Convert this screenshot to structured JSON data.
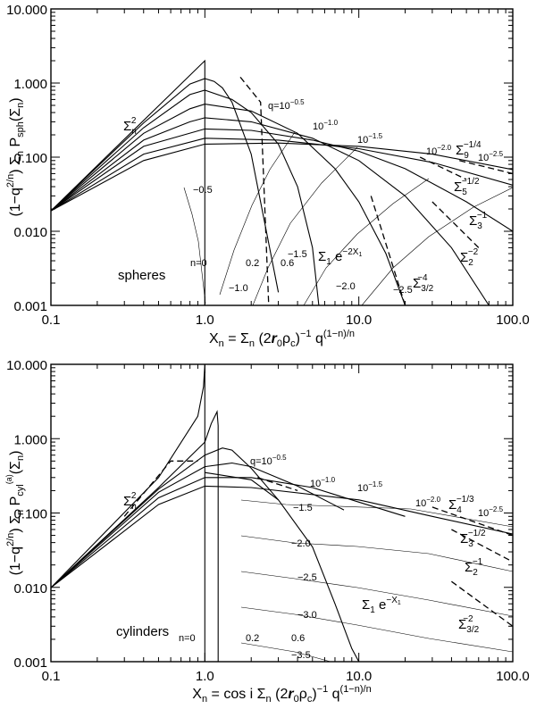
{
  "chart_data": [
    {
      "type": "line",
      "title": "",
      "xscale": "log",
      "yscale": "log",
      "xlim": [
        0.1,
        100.0
      ],
      "ylim": [
        0.001,
        10.0
      ],
      "x_ticks": [
        "0.1",
        "1.0",
        "10.0",
        "100.0"
      ],
      "y_ticks": [
        "0.001",
        "0.010",
        "0.100",
        "1.000",
        "10.000"
      ],
      "xlabel": "X_n = Σ_n (2r0ρc)^-1 q^((1-n)/n)",
      "ylabel": "(1-q^(2/n)) Σ_n P_sph(Σ_n)",
      "xlabel_parts": {
        "a": "X",
        "a_sub": "n",
        "b": " = Σ",
        "b_sub": "n",
        "c": " (2",
        "r": "r",
        "r_sub": "0",
        "rho": "ρ",
        "rho_sub": "c",
        "d": ")",
        "d_sup": "−1",
        "e": " q",
        "e_sup": "(1−n)/n"
      },
      "ylabel_parts": {
        "a": "(1−q",
        "a_sup": "2/n",
        "b": ") Σ",
        "b_sub": "n",
        "c": " P",
        "c_sub": "sph",
        "d": "(Σ",
        "d_sub": "n",
        "e": ")"
      },
      "panel_label": "spheres",
      "series": [
        {
          "name": "n=0",
          "x": [
            0.1,
            1.0,
            1.0
          ],
          "y": [
            0.0189,
            2.0,
            0.001
          ]
        },
        {
          "name": "q=10^-0.5 (n=0.2)",
          "x": [
            0.1,
            0.4,
            0.8,
            1.0,
            1.15,
            1.3,
            1.5,
            2.0,
            3.0
          ],
          "y": [
            0.0189,
            0.29,
            0.97,
            1.15,
            1.05,
            0.86,
            0.55,
            0.11,
            0.0015
          ]
        },
        {
          "name": "q=10^-1.0",
          "x": [
            0.1,
            0.4,
            0.8,
            1.0,
            1.5,
            2.0,
            3.0,
            4.0,
            5.0,
            5.5
          ],
          "y": [
            0.0189,
            0.25,
            0.7,
            0.8,
            0.6,
            0.4,
            0.15,
            0.04,
            0.006,
            0.001
          ]
        },
        {
          "name": "q=10^-1.5",
          "x": [
            0.1,
            0.4,
            0.8,
            1.0,
            2.0,
            4.0,
            7.0,
            10.0,
            15.0,
            20.0
          ],
          "y": [
            0.0189,
            0.21,
            0.45,
            0.52,
            0.42,
            0.21,
            0.07,
            0.025,
            0.005,
            0.001
          ]
        },
        {
          "name": "q=10^-2.0",
          "x": [
            0.1,
            0.4,
            0.8,
            1.0,
            2.0,
            5.0,
            10.0,
            20.0,
            40.0,
            70.0
          ],
          "y": [
            0.0189,
            0.17,
            0.3,
            0.34,
            0.3,
            0.18,
            0.09,
            0.03,
            0.006,
            0.001
          ]
        },
        {
          "name": "q=10^-2.5",
          "x": [
            0.1,
            0.4,
            1.0,
            2.0,
            5.0,
            10.0,
            20.0,
            50.0,
            100.0
          ],
          "y": [
            0.0189,
            0.14,
            0.24,
            0.23,
            0.17,
            0.12,
            0.07,
            0.025,
            0.01
          ]
        },
        {
          "name": "Σ_5^(-1/2)",
          "x": [
            0.1,
            0.4,
            1.0,
            3.0,
            10.0,
            30.0,
            100.0
          ],
          "y": [
            0.0189,
            0.11,
            0.18,
            0.17,
            0.13,
            0.085,
            0.042
          ]
        },
        {
          "name": "Σ_9^(-1/4)",
          "x": [
            0.1,
            0.4,
            1.0,
            3.0,
            10.0,
            30.0,
            100.0
          ],
          "y": [
            0.0189,
            0.09,
            0.15,
            0.155,
            0.14,
            0.11,
            0.068
          ]
        }
      ],
      "annotations": [
        {
          "id": "sigma_n2",
          "text": "Σ",
          "sub": "n",
          "sup": "2"
        },
        {
          "id": "q05",
          "text": "q=10",
          "sup": "−0.5"
        },
        {
          "id": "q10",
          "text": "10",
          "sup": "−1.0"
        },
        {
          "id": "q15",
          "text": "10",
          "sup": "−1.5"
        },
        {
          "id": "q20",
          "text": "10",
          "sup": "−2.0"
        },
        {
          "id": "q25",
          "text": "10",
          "sup": "−2.5"
        },
        {
          "id": "s9",
          "text": "Σ",
          "sub": "9",
          "sup": "−1/4"
        },
        {
          "id": "s5",
          "text": "Σ",
          "sub": "5",
          "sup": "−1/2"
        },
        {
          "id": "s3",
          "text": "Σ",
          "sub": "3",
          "sup": "−1"
        },
        {
          "id": "s2",
          "text": "Σ",
          "sub": "2",
          "sup": "−2"
        },
        {
          "id": "s32",
          "text": "Σ",
          "sub": "3/2",
          "sup": "−4"
        },
        {
          "id": "exp",
          "text": "Σ",
          "sub": "1",
          "mid": " e",
          "sup": "−2X",
          "supsub": "1"
        },
        {
          "id": "n0",
          "text": "n=0"
        },
        {
          "id": "n02",
          "text": "0.2"
        },
        {
          "id": "n06",
          "text": "0.6"
        },
        {
          "id": "c05",
          "text": "−0.5"
        },
        {
          "id": "c10",
          "text": "−1.0"
        },
        {
          "id": "c15",
          "text": "−1.5"
        },
        {
          "id": "c20",
          "text": "−2.0"
        },
        {
          "id": "c25",
          "text": "−2.5"
        }
      ]
    },
    {
      "type": "line",
      "title": "",
      "xscale": "log",
      "yscale": "log",
      "xlim": [
        0.1,
        100.0
      ],
      "ylim": [
        0.001,
        10.0
      ],
      "x_ticks": [
        "0.1",
        "1.0",
        "10.0",
        "100.0"
      ],
      "y_ticks": [
        "0.001",
        "0.010",
        "0.100",
        "1.000",
        "10.000"
      ],
      "xlabel": "X_n = cos i Σ_n (2r0ρc)^-1 q^((1-n)/n)",
      "ylabel": "(1-q^(2/n)) Σ_n P_cyl^(a)(Σ_n)",
      "xlabel_parts": {
        "a": "X",
        "a_sub": "n",
        "b": " = cos i Σ",
        "b_sub": "n",
        "c": " (2",
        "r": "r",
        "r_sub": "0",
        "rho": "ρ",
        "rho_sub": "c",
        "d": ")",
        "d_sup": "−1",
        "e": " q",
        "e_sup": "(1−n)/n"
      },
      "ylabel_parts": {
        "a": "(1−q",
        "a_sup": "2/n",
        "b": ") Σ",
        "b_sub": "n",
        "c": " P",
        "c_sub": "cyl",
        "c_sup": "(a)",
        "d": "(Σ",
        "d_sub": "n",
        "e": ")"
      },
      "panel_label": "cylinders",
      "series": [
        {
          "name": "n=0",
          "x": [
            0.1,
            0.5,
            0.9,
            0.98,
            1.0,
            1.0
          ],
          "y": [
            0.0099,
            0.3,
            2.0,
            5.0,
            10.0,
            0.001
          ]
        },
        {
          "name": "q=10^-0.5 (n=0.2)",
          "x": [
            0.1,
            0.5,
            1.0,
            1.1,
            1.2,
            1.22,
            1.22
          ],
          "y": [
            0.0099,
            0.22,
            0.9,
            1.6,
            2.3,
            1.5,
            0.001
          ]
        },
        {
          "name": "q=10^-1.0",
          "x": [
            0.1,
            0.5,
            1.0,
            1.3,
            1.5,
            2.0,
            3.0
          ],
          "y": [
            0.0099,
            0.21,
            0.6,
            0.75,
            0.7,
            0.4,
            0.15
          ]
        },
        {
          "name": "q=10^-1.5",
          "x": [
            0.1,
            0.5,
            1.0,
            1.5,
            2.0,
            4.0,
            8.0
          ],
          "y": [
            0.0099,
            0.19,
            0.42,
            0.47,
            0.42,
            0.23,
            0.11
          ]
        },
        {
          "name": "q=10^-2.0",
          "x": [
            0.1,
            0.5,
            1.0,
            2.0,
            5.0,
            10.0,
            20.0
          ],
          "y": [
            0.0099,
            0.16,
            0.3,
            0.3,
            0.22,
            0.14,
            0.09
          ]
        },
        {
          "name": "q=10^-2.5",
          "x": [
            0.1,
            0.5,
            1.0,
            2.0,
            10.0,
            30.0,
            100.0
          ],
          "y": [
            0.0099,
            0.13,
            0.23,
            0.22,
            0.15,
            0.09,
            0.052
          ]
        },
        {
          "name": "Σ_1 e^(-X1)",
          "x": [
            1.0,
            2.0,
            3.0,
            5.0,
            7.0,
            9.0,
            10.0
          ],
          "y": [
            0.35,
            0.28,
            0.15,
            0.035,
            0.006,
            0.0015,
            0.001
          ]
        }
      ],
      "annotations": [
        {
          "id": "sigma_n2",
          "text": "Σ",
          "sub": "n",
          "sup": "2"
        },
        {
          "id": "q05",
          "text": "q=10",
          "sup": "−0.5"
        },
        {
          "id": "q10",
          "text": "10",
          "sup": "−1.0"
        },
        {
          "id": "q15",
          "text": "10",
          "sup": "−1.5"
        },
        {
          "id": "q20",
          "text": "10",
          "sup": "−2.0"
        },
        {
          "id": "q25",
          "text": "10",
          "sup": "−2.5"
        },
        {
          "id": "s4",
          "text": "Σ",
          "sub": "4",
          "sup": "−1/3"
        },
        {
          "id": "s3",
          "text": "Σ",
          "sub": "3",
          "sup": "−1/2"
        },
        {
          "id": "s2",
          "text": "Σ",
          "sub": "2",
          "sup": "−1"
        },
        {
          "id": "s32",
          "text": "Σ",
          "sub": "3/2",
          "sup": "−2"
        },
        {
          "id": "exp",
          "text": "Σ",
          "sub": "1",
          "mid": " e",
          "sup": "−X",
          "supsub": "1"
        },
        {
          "id": "n0",
          "text": "n=0"
        },
        {
          "id": "n02",
          "text": "0.2"
        },
        {
          "id": "n06",
          "text": "0.6"
        },
        {
          "id": "c15",
          "text": "−1.5"
        },
        {
          "id": "c20",
          "text": "−2.0"
        },
        {
          "id": "c25",
          "text": "−2.5"
        },
        {
          "id": "c30",
          "text": "−3.0"
        },
        {
          "id": "c35",
          "text": "−3.5"
        }
      ]
    }
  ]
}
